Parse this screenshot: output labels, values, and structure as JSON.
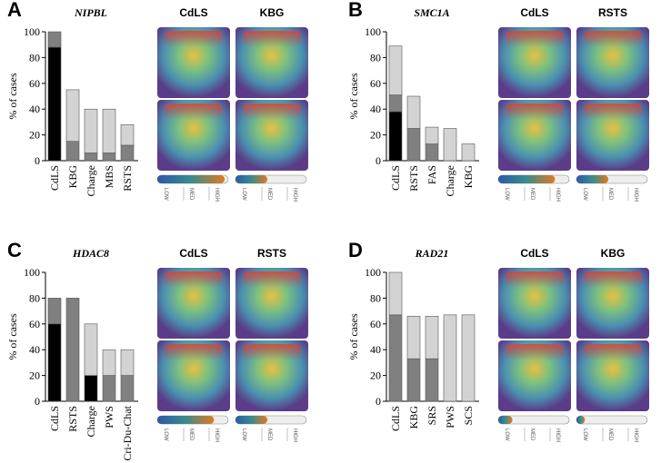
{
  "chart_data": [
    {
      "type": "bar",
      "panel_label": "A",
      "title": "NIPBL",
      "ylabel": "% of cases",
      "categories": [
        "CdLS",
        "KBG",
        "Charge",
        "MBS",
        "RSTS"
      ],
      "series": [
        {
          "color": "#000000",
          "values": [
            88,
            null,
            null,
            null,
            null
          ]
        },
        {
          "color": "#808080",
          "values": [
            12,
            15,
            6,
            6,
            12
          ]
        },
        {
          "color": "#d3d3d3",
          "values": [
            null,
            40,
            34,
            34,
            16
          ]
        }
      ],
      "ylim": [
        0,
        100
      ],
      "yticks": [
        0,
        20,
        40,
        60,
        80,
        100
      ],
      "heatmaps": [
        {
          "title": "CdLS",
          "level": 0.95
        },
        {
          "title": "KBG",
          "level": 0.45
        }
      ],
      "colorbar_labels": [
        "LOW",
        "MED",
        "HIGH"
      ]
    },
    {
      "type": "bar",
      "panel_label": "B",
      "title": "SMC1A",
      "ylabel": "% of cases",
      "categories": [
        "CdLS",
        "RSTS",
        "FAS",
        "Charge",
        "KBG"
      ],
      "series": [
        {
          "color": "#000000",
          "values": [
            38,
            null,
            null,
            null,
            null
          ]
        },
        {
          "color": "#808080",
          "values": [
            13,
            25,
            13,
            null,
            null
          ]
        },
        {
          "color": "#d3d3d3",
          "values": [
            38,
            25,
            13,
            25,
            13
          ]
        }
      ],
      "ylim": [
        0,
        100
      ],
      "yticks": [
        0,
        20,
        40,
        60,
        80,
        100
      ],
      "heatmaps": [
        {
          "title": "CdLS",
          "level": 0.8
        },
        {
          "title": "RSTS",
          "level": 0.45
        }
      ],
      "colorbar_labels": [
        "LOW",
        "MED",
        "HIGH"
      ]
    },
    {
      "type": "bar",
      "panel_label": "C",
      "title": "HDAC8",
      "ylabel": "% of cases",
      "categories": [
        "CdLS",
        "RSTS",
        "Charge",
        "PWS",
        "Cri-Du-Chat"
      ],
      "series": [
        {
          "color": "#000000",
          "values": [
            60,
            null,
            20,
            null,
            null
          ]
        },
        {
          "color": "#808080",
          "values": [
            20,
            80,
            null,
            20,
            20
          ]
        },
        {
          "color": "#d3d3d3",
          "values": [
            null,
            null,
            40,
            20,
            20
          ]
        }
      ],
      "ylim": [
        0,
        100
      ],
      "yticks": [
        0,
        20,
        40,
        60,
        80,
        100
      ],
      "heatmaps": [
        {
          "title": "CdLS",
          "level": 0.8
        },
        {
          "title": "RSTS",
          "level": 0.45
        }
      ],
      "colorbar_labels": [
        "LOW",
        "MED",
        "HIGH"
      ]
    },
    {
      "type": "bar",
      "panel_label": "D",
      "title": "RAD21",
      "ylabel": "% of cases",
      "categories": [
        "CdLS",
        "KBG",
        "SRS",
        "PWS",
        "SCS"
      ],
      "series": [
        {
          "color": "#808080",
          "values": [
            67,
            33,
            33,
            null,
            null
          ]
        },
        {
          "color": "#d3d3d3",
          "values": [
            33,
            33,
            33,
            67,
            67
          ]
        }
      ],
      "ylim": [
        0,
        100
      ],
      "yticks": [
        0,
        20,
        40,
        60,
        80,
        100
      ],
      "heatmaps": [
        {
          "title": "CdLS",
          "level": 0.2
        },
        {
          "title": "KBG",
          "level": 0.12
        }
      ],
      "colorbar_labels": [
        "LOW",
        "MED",
        "HIGH"
      ]
    }
  ]
}
